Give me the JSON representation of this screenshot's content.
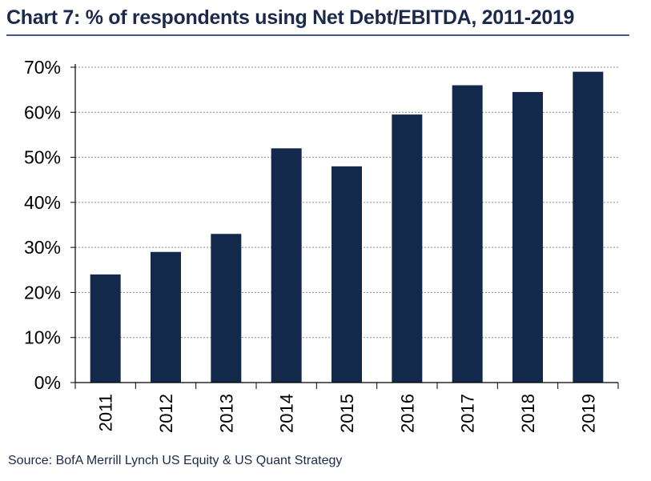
{
  "header": {
    "title": "Chart 7: % of respondents using Net Debt/EBITDA, 2011-2019"
  },
  "footer": {
    "source": "Source: BofA Merrill Lynch US Equity & US Quant Strategy"
  },
  "colors": {
    "bar": "#13294b",
    "grid": "#8c8c8c",
    "axis": "#000000",
    "title": "#1b2a4a"
  },
  "chart_data": {
    "type": "bar",
    "title": "Chart 7: % of respondents using Net Debt/EBITDA, 2011-2019",
    "xlabel": "",
    "ylabel": "",
    "categories": [
      "2011",
      "2012",
      "2013",
      "2014",
      "2015",
      "2016",
      "2017",
      "2018",
      "2019"
    ],
    "values": [
      24,
      29,
      33,
      52,
      48,
      59.5,
      66,
      64.5,
      69
    ],
    "ylim": [
      0,
      70
    ],
    "yticks": [
      0,
      10,
      20,
      30,
      40,
      50,
      60,
      70
    ],
    "ytick_labels": [
      "0%",
      "10%",
      "20%",
      "30%",
      "40%",
      "50%",
      "60%",
      "70%"
    ],
    "grid": true,
    "grid_style": "dotted horizontal",
    "legend": "none",
    "xtick_rotation": "vertical"
  }
}
